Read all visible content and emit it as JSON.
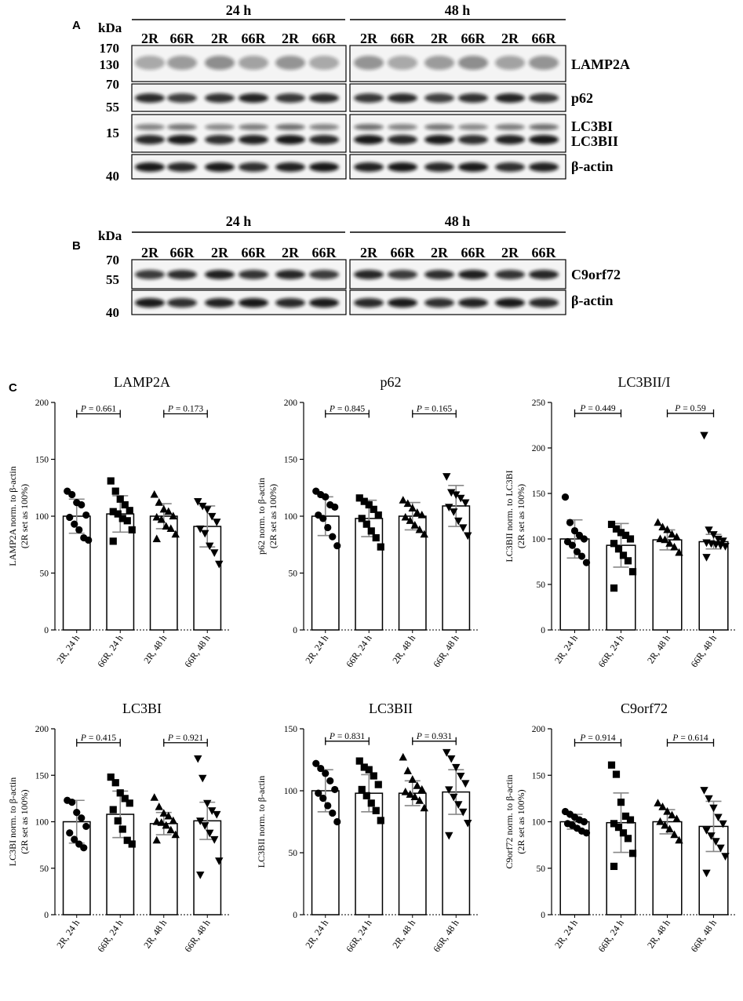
{
  "panel_a": {
    "letter": "A",
    "kda": "kDa",
    "time_labels": [
      "24 h",
      "48 h"
    ],
    "lane_labels": [
      "2R",
      "66R",
      "2R",
      "66R",
      "2R",
      "66R",
      "2R",
      "66R",
      "2R",
      "66R",
      "2R",
      "66R"
    ],
    "mw_markers": [
      {
        "label": "170"
      },
      {
        "label": "130"
      },
      {
        "label": "70"
      },
      {
        "label": "55"
      },
      {
        "label": "15"
      },
      {
        "label": "40"
      }
    ],
    "blots": [
      {
        "labels": [
          "LAMP2A"
        ]
      },
      {
        "labels": [
          "p62"
        ]
      },
      {
        "labels": [
          "LC3BI",
          "LC3BII"
        ]
      },
      {
        "labels": [
          "β-actin"
        ]
      }
    ]
  },
  "panel_b": {
    "letter": "B",
    "kda": "kDa",
    "time_labels": [
      "24 h",
      "48 h"
    ],
    "lane_labels": [
      "2R",
      "66R",
      "2R",
      "66R",
      "2R",
      "66R",
      "2R",
      "66R",
      "2R",
      "66R",
      "2R",
      "66R"
    ],
    "mw_markers": [
      {
        "label": "70"
      },
      {
        "label": "55"
      },
      {
        "label": "40"
      }
    ],
    "blots": [
      {
        "labels": [
          "C9orf72"
        ]
      },
      {
        "labels": [
          "β-actin"
        ]
      }
    ]
  },
  "panel_c": {
    "letter": "C"
  },
  "chart_data": [
    {
      "type": "bar",
      "title": "LAMP2A",
      "ylabel": "LAMP2A norm. to β-actin",
      "ylabel2": "(2R set as 100%)",
      "ylim": [
        0,
        200
      ],
      "yticks": [
        0,
        50,
        100,
        150,
        200
      ],
      "categories": [
        "2R, 24 h",
        "66R, 24 h",
        "2R, 48 h",
        "66R, 48 h"
      ],
      "markers": [
        "circle",
        "square",
        "triangle",
        "triangle-down"
      ],
      "means": [
        100,
        102,
        100,
        91
      ],
      "sd": [
        15,
        16,
        11,
        18
      ],
      "points": [
        [
          122,
          119,
          112,
          110,
          101,
          99,
          93,
          88,
          81,
          79
        ],
        [
          131,
          122,
          115,
          110,
          105,
          104,
          102,
          98,
          96,
          88,
          78
        ],
        [
          119,
          112,
          106,
          104,
          100,
          99,
          97,
          91,
          89,
          84,
          80
        ],
        [
          113,
          109,
          106,
          100,
          95,
          89,
          85,
          74,
          68,
          58
        ]
      ],
      "comparisons": [
        {
          "from": 0,
          "to": 1,
          "label": "P = 0.661",
          "y": 190
        },
        {
          "from": 2,
          "to": 3,
          "label": "P = 0.173",
          "y": 190
        }
      ]
    },
    {
      "type": "bar",
      "title": "p62",
      "ylabel": "p62 norm. to β-actin",
      "ylabel2": "(2R set as 100%)",
      "ylim": [
        0,
        200
      ],
      "yticks": [
        0,
        50,
        100,
        150,
        200
      ],
      "categories": [
        "2R, 24 h",
        "66R, 24 h",
        "2R, 48 h",
        "66R, 48 h"
      ],
      "markers": [
        "circle",
        "square",
        "triangle",
        "triangle-down"
      ],
      "means": [
        100,
        98,
        100,
        109
      ],
      "sd": [
        17,
        16,
        12,
        18
      ],
      "points": [
        [
          122,
          119,
          117,
          110,
          108,
          101,
          98,
          90,
          82,
          74
        ],
        [
          116,
          113,
          110,
          106,
          101,
          98,
          93,
          87,
          81,
          73
        ],
        [
          114,
          111,
          107,
          103,
          101,
          99,
          96,
          92,
          88,
          84
        ],
        [
          135,
          121,
          119,
          116,
          112,
          108,
          104,
          96,
          90,
          83
        ]
      ],
      "comparisons": [
        {
          "from": 0,
          "to": 1,
          "label": "P = 0.845",
          "y": 190
        },
        {
          "from": 2,
          "to": 3,
          "label": "P = 0.165",
          "y": 190
        }
      ]
    },
    {
      "type": "bar",
      "title": "LC3BII/I",
      "ylabel": "LC3BII norm. to LC3BI",
      "ylabel2": "(2R set as 100%)",
      "ylim": [
        0,
        250
      ],
      "yticks": [
        0,
        50,
        100,
        150,
        200,
        250
      ],
      "categories": [
        "2R, 24 h",
        "66R, 24 h",
        "2R, 48 h",
        "66R, 48 h"
      ],
      "markers": [
        "circle",
        "square",
        "triangle",
        "triangle-down"
      ],
      "means": [
        100,
        93,
        99,
        97
      ],
      "sd": [
        21,
        24,
        11,
        8
      ],
      "points": [
        [
          146,
          118,
          109,
          104,
          100,
          97,
          93,
          86,
          81,
          74
        ],
        [
          116,
          111,
          107,
          104,
          100,
          95,
          89,
          82,
          76,
          64,
          46
        ],
        [
          118,
          113,
          110,
          105,
          102,
          100,
          99,
          95,
          91,
          85
        ],
        [
          214,
          110,
          105,
          100,
          98,
          96,
          95,
          94,
          93,
          92,
          80
        ]
      ],
      "comparisons": [
        {
          "from": 0,
          "to": 1,
          "label": "P = 0.449",
          "y": 238
        },
        {
          "from": 2,
          "to": 3,
          "label": "P = 0.59",
          "y": 238
        }
      ]
    },
    {
      "type": "bar",
      "title": "LC3BI",
      "ylabel": "LC3BI norm. to β-actin",
      "ylabel2": "(2R set as 100%)",
      "ylim": [
        0,
        200
      ],
      "yticks": [
        0,
        50,
        100,
        150,
        200
      ],
      "categories": [
        "2R, 24 h",
        "66R, 24 h",
        "2R, 48 h",
        "66R, 48 h"
      ],
      "markers": [
        "circle",
        "square",
        "triangle",
        "triangle-down"
      ],
      "means": [
        100,
        108,
        98,
        101
      ],
      "sd": [
        23,
        25,
        12,
        20
      ],
      "points": [
        [
          123,
          121,
          110,
          104,
          95,
          88,
          81,
          76,
          72
        ],
        [
          148,
          142,
          131,
          125,
          120,
          113,
          101,
          92,
          80,
          76
        ],
        [
          126,
          116,
          109,
          106,
          101,
          100,
          99,
          96,
          91,
          86,
          80
        ],
        [
          168,
          147,
          120,
          112,
          108,
          101,
          96,
          88,
          81,
          58,
          43
        ]
      ],
      "comparisons": [
        {
          "from": 0,
          "to": 1,
          "label": "P = 0.415",
          "y": 185
        },
        {
          "from": 2,
          "to": 3,
          "label": "P = 0.921",
          "y": 185
        }
      ]
    },
    {
      "type": "bar",
      "title": "LC3BII",
      "ylabel": "LC3BII norm. to β-actin",
      "ylabel2": "",
      "ylim": [
        0,
        150
      ],
      "yticks": [
        0,
        50,
        100,
        150
      ],
      "categories": [
        "2R, 24 h",
        "66R, 24 h",
        "2R, 48 h",
        "66R, 48 h"
      ],
      "markers": [
        "circle",
        "square",
        "triangle",
        "triangle-down"
      ],
      "means": [
        100,
        98,
        98,
        99
      ],
      "sd": [
        17,
        15,
        10,
        18
      ],
      "points": [
        [
          122,
          118,
          114,
          108,
          101,
          98,
          94,
          88,
          82,
          75
        ],
        [
          124,
          119,
          117,
          112,
          105,
          101,
          96,
          90,
          84,
          76
        ],
        [
          127,
          116,
          109,
          104,
          101,
          99,
          97,
          95,
          92,
          86
        ],
        [
          131,
          126,
          119,
          112,
          106,
          101,
          95,
          89,
          83,
          74,
          64
        ]
      ],
      "comparisons": [
        {
          "from": 0,
          "to": 1,
          "label": "P = 0.831",
          "y": 140
        },
        {
          "from": 2,
          "to": 3,
          "label": "P = 0.931",
          "y": 140
        }
      ]
    },
    {
      "type": "bar",
      "title": "C9orf72",
      "ylabel": "C9orf72 norm. to β-actin",
      "ylabel2": "(2R set as 100%)",
      "ylim": [
        0,
        200
      ],
      "yticks": [
        0,
        50,
        100,
        150,
        200
      ],
      "categories": [
        "2R, 24 h",
        "66R, 24 h",
        "2R, 48 h",
        "66R, 48 h"
      ],
      "markers": [
        "circle",
        "square",
        "triangle",
        "triangle-down"
      ],
      "means": [
        100,
        99,
        100,
        95
      ],
      "sd": [
        8,
        32,
        13,
        27
      ],
      "points": [
        [
          111,
          108,
          105,
          102,
          100,
          98,
          96,
          93,
          90,
          88
        ],
        [
          161,
          151,
          121,
          106,
          102,
          98,
          94,
          88,
          82,
          66,
          52
        ],
        [
          120,
          116,
          111,
          107,
          103,
          100,
          96,
          92,
          86,
          80
        ],
        [
          134,
          125,
          115,
          105,
          98,
          91,
          85,
          79,
          72,
          63,
          45
        ]
      ],
      "comparisons": [
        {
          "from": 0,
          "to": 1,
          "label": "P = 0.914",
          "y": 185
        },
        {
          "from": 2,
          "to": 3,
          "label": "P = 0.614",
          "y": 185
        }
      ]
    }
  ]
}
